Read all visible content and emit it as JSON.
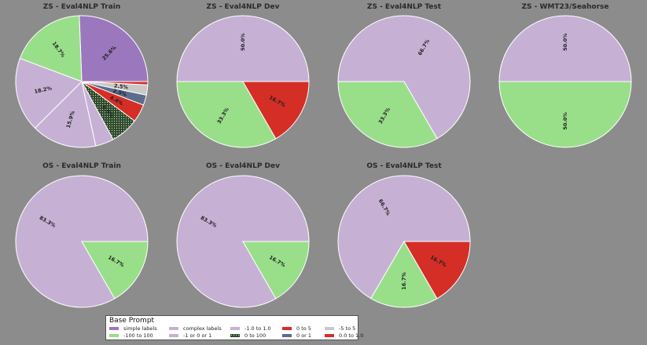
{
  "colors": {
    "simple labels": "#9b78bd",
    "-100 to 100": "#99df8a",
    "complex labels": "#c6b1d5",
    "-1 or 0 or 1": "#c6b1d5",
    "-1.0 to 1.0": "#c6b1d5",
    "0 to 100": "#2d4a2a",
    "0 to 5": "#d42e26",
    "0 or 1": "#5b6c8d",
    "-5 to 5": "#c8c8c8",
    "0.0 to 1.0": "#d42e26"
  },
  "hatched": [
    "0 to 100"
  ],
  "chart_data": [
    {
      "type": "pie",
      "title": "ZS - Eval4NLP Train",
      "startangle": 0,
      "slices": [
        {
          "category": "simple labels",
          "value": 25.6,
          "label": "25.6%"
        },
        {
          "category": "-100 to 100",
          "value": 18.7,
          "label": "18.7%"
        },
        {
          "category": "complex labels",
          "value": 18.2,
          "label": "18.2%"
        },
        {
          "category": "-1 or 0 or 1",
          "value": 15.9,
          "label": "15.9%"
        },
        {
          "category": "-1.0 to 1.0",
          "value": 4.5,
          "label": ""
        },
        {
          "category": "0 to 100",
          "value": 6.9,
          "label": "6.9%"
        },
        {
          "category": "0 to 5",
          "value": 4.4,
          "label": "4.4%"
        },
        {
          "category": "0 or 1",
          "value": 2.5,
          "label": "2.5%"
        },
        {
          "category": "-5 to 5",
          "value": 2.5,
          "label": "2.5%"
        },
        {
          "category": "0.0 to 1.0",
          "value": 0.8,
          "label": ""
        }
      ]
    },
    {
      "type": "pie",
      "title": "ZS - Eval4NLP Dev",
      "startangle": 0,
      "slices": [
        {
          "category": "-1.0 to 1.0",
          "value": 50.0,
          "label": "50.0%"
        },
        {
          "category": "-100 to 100",
          "value": 33.3,
          "label": "33.3%"
        },
        {
          "category": "0.0 to 1.0",
          "value": 16.7,
          "label": "16.7%"
        }
      ]
    },
    {
      "type": "pie",
      "title": "ZS - Eval4NLP Test",
      "startangle": -60,
      "slices": [
        {
          "category": "-1.0 to 1.0",
          "value": 66.7,
          "label": "66.7%"
        },
        {
          "category": "-100 to 100",
          "value": 33.3,
          "label": "33.3%"
        }
      ]
    },
    {
      "type": "pie",
      "title": "ZS - WMT23/Seahorse",
      "startangle": 0,
      "slices": [
        {
          "category": "-1.0 to 1.0",
          "value": 50.0,
          "label": "50.0%"
        },
        {
          "category": "-100 to 100",
          "value": 50.0,
          "label": "50.0%"
        }
      ]
    },
    {
      "type": "pie",
      "title": "OS - Eval4NLP Train",
      "startangle": 0,
      "slices": [
        {
          "category": "-1.0 to 1.0",
          "value": 83.3,
          "label": "83.3%"
        },
        {
          "category": "-100 to 100",
          "value": 16.7,
          "label": "16.7%"
        }
      ]
    },
    {
      "type": "pie",
      "title": "OS - Eval4NLP Dev",
      "startangle": 0,
      "slices": [
        {
          "category": "-1.0 to 1.0",
          "value": 83.3,
          "label": "83.3%"
        },
        {
          "category": "-100 to 100",
          "value": 16.7,
          "label": "16.7%"
        }
      ]
    },
    {
      "type": "pie",
      "title": "OS - Eval4NLP Test",
      "startangle": 0,
      "slices": [
        {
          "category": "-1.0 to 1.0",
          "value": 66.7,
          "label": "66.7%"
        },
        {
          "category": "-100 to 100",
          "value": 16.7,
          "label": "16.7%"
        },
        {
          "category": "0.0 to 1.0",
          "value": 16.7,
          "label": "16.7%"
        }
      ]
    }
  ],
  "legend": {
    "title": "Base Prompt",
    "items": [
      "simple labels",
      "-100 to 100",
      "complex labels",
      "-1 or 0 or 1",
      "-1.0 to 1.0",
      "0 to 100",
      "0 to 5",
      "0 or 1",
      "-5 to 5",
      "0.0 to 1.0"
    ]
  }
}
